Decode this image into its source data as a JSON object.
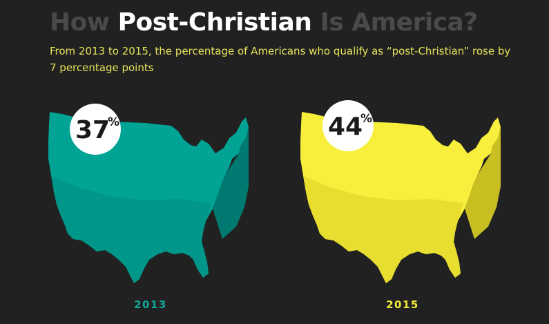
{
  "title": {
    "part1": "How ",
    "part2": "Post-Christian",
    "part3": " Is America?"
  },
  "subtitle": "From 2013 to 2015, the percentage of Americans who qualify as “post-Christian” rose by 7 percentage points",
  "colors": {
    "background": "#212121",
    "title_dim": "#4a4a4a",
    "title_bright": "#ffffff",
    "subtitle": "#e6e35a",
    "teal_top": "#00a394",
    "teal_mid": "#00968a",
    "teal_side": "#007a70",
    "yellow_top": "#f7ef3c",
    "yellow_mid": "#e8de2f",
    "yellow_side": "#c9bf22",
    "label_2013": "#11a89a",
    "label_2015": "#f2ea3a"
  },
  "chart_data": {
    "type": "bar",
    "categories": [
      "2013",
      "2015"
    ],
    "series": [
      {
        "values": [
          37,
          44
        ],
        "labels": [
          "37",
          "44"
        ]
      }
    ],
    "unit_symbol": "%",
    "title": "How Post-Christian Is America?",
    "subtitle": "From 2013 to 2015, the percentage of Americans who qualify as “post-Christian” rose by 7 percentage points",
    "xlabel": "",
    "ylabel": "",
    "grid": false,
    "legend": "none"
  }
}
